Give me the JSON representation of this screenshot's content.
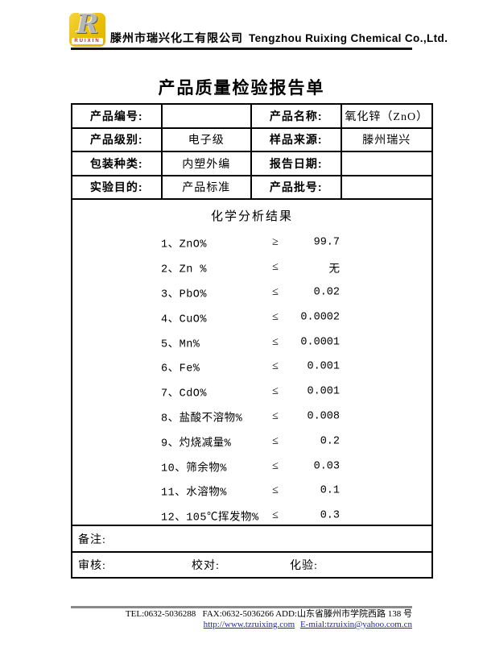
{
  "company": {
    "logo_letter": "R",
    "logo_brand": "RUIXIN",
    "name_cn": "滕州市瑞兴化工有限公司",
    "name_en": "Tengzhou Ruixing Chemical Co.,Ltd."
  },
  "title": "产品质量检验报告单",
  "info": {
    "product_no_label": "产品编号:",
    "product_no_value": "",
    "product_name_label": "产品名称:",
    "product_name_value": "氧化锌（ZnO）",
    "grade_label": "产品级别:",
    "grade_value": "电子级",
    "sample_source_label": "样品来源:",
    "sample_source_value": "滕州瑞兴",
    "package_label": "包装种类:",
    "package_value": "内塑外编",
    "report_date_label": "报告日期:",
    "report_date_value": "",
    "purpose_label": "实验目的:",
    "purpose_value": "产品标准",
    "batch_label": "产品批号:",
    "batch_value": ""
  },
  "chem": {
    "heading": "化学分析结果",
    "items": [
      {
        "label": "1、ZnO%",
        "op": "≥",
        "value": "99.7"
      },
      {
        "label": "2、Zn %",
        "op": "≤",
        "value": "无"
      },
      {
        "label": "3、PbO%",
        "op": "≤",
        "value": "0.02"
      },
      {
        "label": "4、CuO%",
        "op": "≤",
        "value": "0.0002"
      },
      {
        "label": "5、Mn%",
        "op": "≤",
        "value": "0.0001"
      },
      {
        "label": "6、Fe%",
        "op": "≤",
        "value": "0.001"
      },
      {
        "label": "7、CdO%",
        "op": "≤",
        "value": "0.001"
      },
      {
        "label": "8、盐酸不溶物%",
        "op": "≤",
        "value": "0.008"
      },
      {
        "label": "9、灼烧减量%",
        "op": "≤",
        "value": "0.2"
      },
      {
        "label": "10、筛余物%",
        "op": "≤",
        "value": "0.03"
      },
      {
        "label": "11、水溶物%",
        "op": "≤",
        "value": "0.1"
      },
      {
        "label": "12、105℃挥发物%",
        "op": "≤",
        "value": "0.3"
      }
    ]
  },
  "remarks_label": "备注:",
  "sign": {
    "review_label": "审核:",
    "proofread_label": "校对:",
    "assay_label": "化验:"
  },
  "footer": {
    "line1": "TEL:0632-5036288   FAX:0632-5036266 ADD:山东省滕州市学院西路 138 号",
    "url": "http://www.tzruixing.com",
    "email": "E-mial:tzruixin@yahoo.com.cn"
  },
  "colors": {
    "logo_yellow": "#eabf04",
    "brand_red": "#c8201d",
    "link_blue": "#2323bd",
    "footer_rule_gray": "#8a8a8a",
    "border_black": "#000000"
  }
}
